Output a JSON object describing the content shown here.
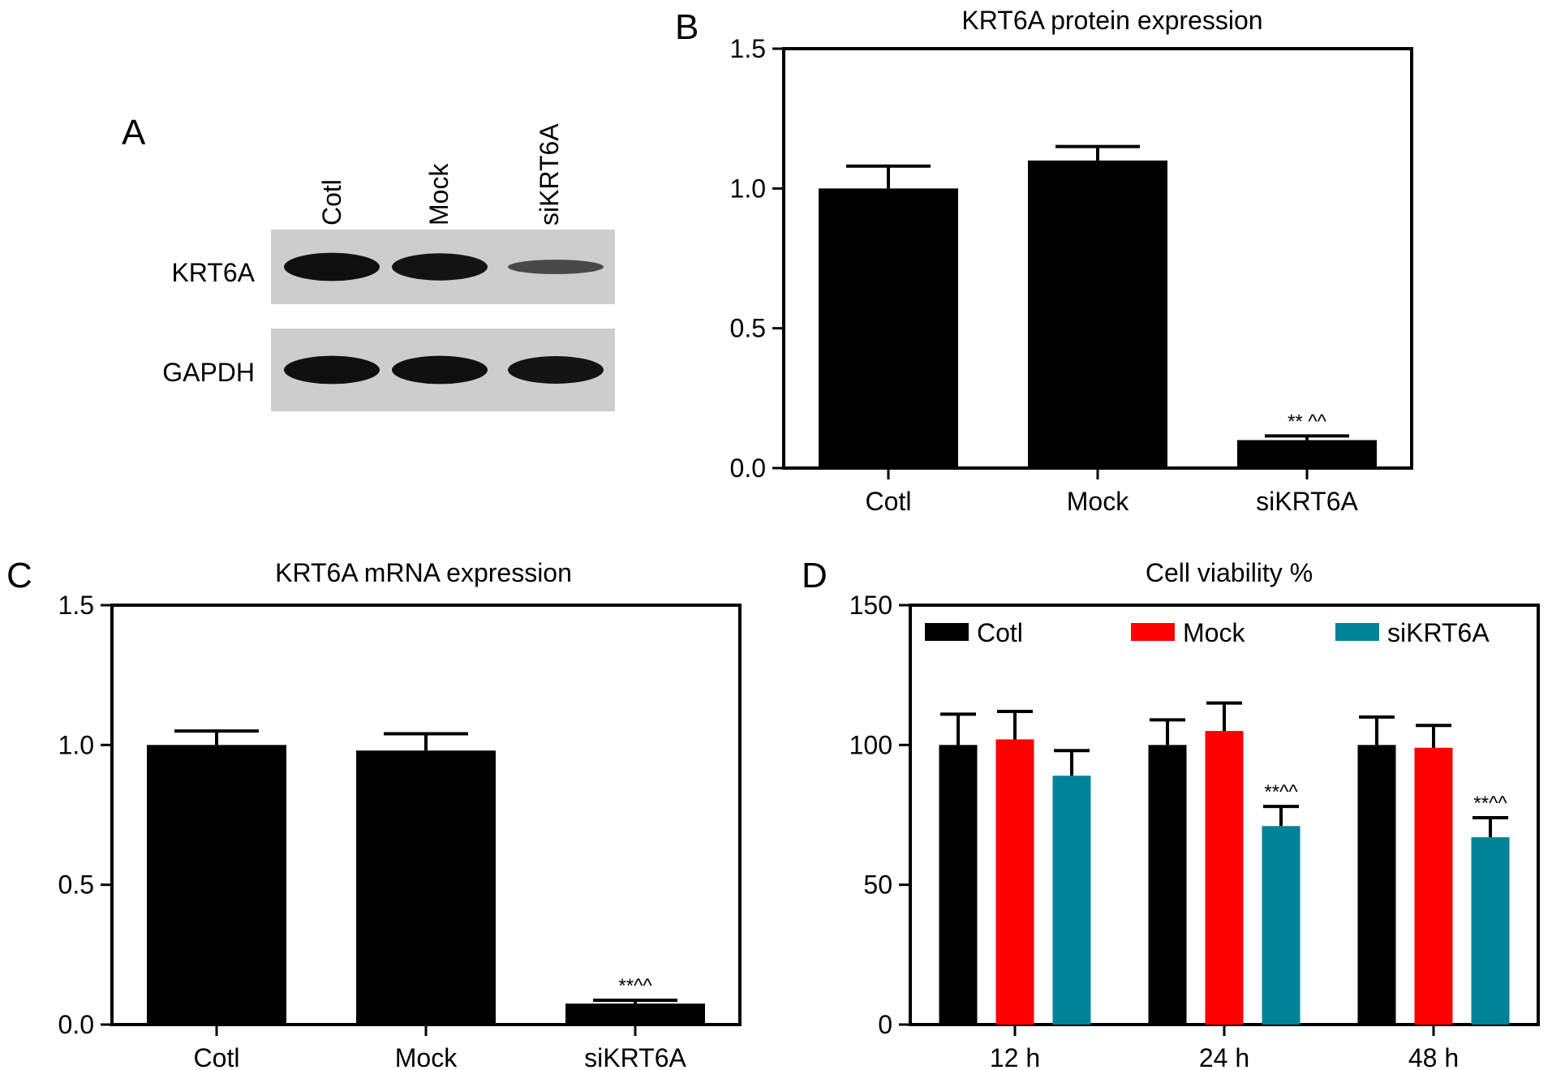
{
  "panel_a": {
    "letter": "A",
    "lanes": [
      "Cotl",
      "Mock",
      "siKRT6A"
    ],
    "rows": [
      {
        "label": "KRT6A",
        "band_intensity": [
          0.95,
          0.9,
          0.3
        ]
      },
      {
        "label": "GAPDH",
        "band_intensity": [
          0.95,
          0.95,
          0.92
        ]
      }
    ]
  },
  "chart_data": [
    {
      "panel": "B",
      "type": "bar",
      "title": "KRT6A protein expression",
      "categories": [
        "Cotl",
        "Mock",
        "siKRT6A"
      ],
      "values": [
        1.0,
        1.1,
        0.1
      ],
      "errors": [
        0.08,
        0.05,
        0.015
      ],
      "annotations": [
        "",
        "",
        "** ^^"
      ],
      "ylim": [
        0,
        1.5
      ],
      "yticks": [
        "0.0",
        "0.5",
        "1.0",
        "1.5"
      ],
      "xlabel": "",
      "ylabel": "",
      "bar_color": "#000000"
    },
    {
      "panel": "C",
      "type": "bar",
      "title": "KRT6A mRNA expression",
      "categories": [
        "Cotl",
        "Mock",
        "siKRT6A"
      ],
      "values": [
        1.0,
        0.98,
        0.075
      ],
      "errors": [
        0.05,
        0.06,
        0.012
      ],
      "annotations": [
        "",
        "",
        "**^^"
      ],
      "ylim": [
        0,
        1.5
      ],
      "yticks": [
        "0.0",
        "0.5",
        "1.0",
        "1.5"
      ],
      "xlabel": "",
      "ylabel": "",
      "bar_color": "#000000"
    },
    {
      "panel": "D",
      "type": "bar",
      "title": "Cell viability %",
      "categories": [
        "12 h",
        "24 h",
        "48 h"
      ],
      "series": [
        {
          "name": "Cotl",
          "color": "#000000",
          "values": [
            100,
            100,
            100
          ],
          "errors": [
            11,
            9,
            10
          ],
          "annotations": [
            "",
            "",
            ""
          ]
        },
        {
          "name": "Mock",
          "color": "#ff0000",
          "values": [
            102,
            105,
            99
          ],
          "errors": [
            10,
            10,
            8
          ],
          "annotations": [
            "",
            "",
            ""
          ]
        },
        {
          "name": "siKRT6A",
          "color": "#008299",
          "values": [
            89,
            71,
            67
          ],
          "errors": [
            9,
            7,
            7
          ],
          "annotations": [
            "",
            "**^^",
            "**^^"
          ]
        }
      ],
      "ylim": [
        0,
        150
      ],
      "yticks": [
        "0",
        "50",
        "100",
        "150"
      ],
      "xlabel": "",
      "ylabel": "",
      "legend": "top"
    }
  ]
}
